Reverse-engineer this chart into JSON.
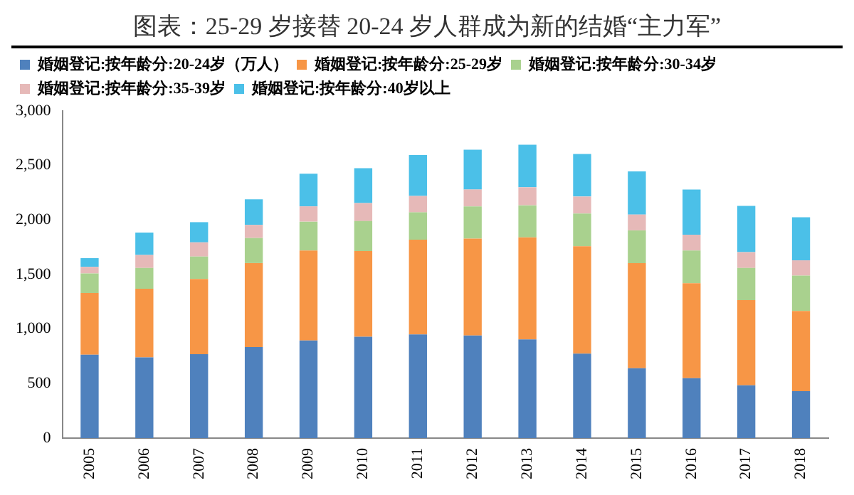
{
  "chart_data": {
    "type": "bar",
    "title": "图表：25-29 岁接替 20-24 岁人群成为新的结婚“主力军”",
    "stacked": true,
    "legend": "top",
    "grid": false,
    "categories": [
      "2005",
      "2006",
      "2007",
      "2008",
      "2009",
      "2010",
      "2011",
      "2012",
      "2013",
      "2014",
      "2015",
      "2016",
      "2017",
      "2018"
    ],
    "ylim": [
      0,
      3000
    ],
    "yticks": [
      {
        "value": 0,
        "label": "0"
      },
      {
        "value": 500,
        "label": "500"
      },
      {
        "value": 1000,
        "label": "1,000"
      },
      {
        "value": 1500,
        "label": "1,500"
      },
      {
        "value": 2000,
        "label": "2,000"
      },
      {
        "value": 2500,
        "label": "2,500"
      },
      {
        "value": 3000,
        "label": "3,000"
      }
    ],
    "series": [
      {
        "name": "婚姻登记:按年龄分:20-24岁（万人）",
        "color": "#4f81bd",
        "values": [
          765,
          740,
          770,
          835,
          895,
          930,
          950,
          940,
          905,
          775,
          640,
          550,
          485,
          430
        ]
      },
      {
        "name": "婚姻登记:按年龄分:25-29岁",
        "color": "#f79646",
        "values": [
          565,
          630,
          690,
          770,
          825,
          785,
          870,
          890,
          935,
          985,
          965,
          870,
          780,
          735
        ]
      },
      {
        "name": "婚姻登记:按年龄分:30-34岁",
        "color": "#a9d18e",
        "values": [
          180,
          190,
          205,
          230,
          265,
          275,
          250,
          295,
          295,
          300,
          300,
          300,
          295,
          325
        ]
      },
      {
        "name": "婚姻登记:按年龄分:35-39岁",
        "color": "#e6b9b8",
        "values": [
          60,
          120,
          130,
          120,
          140,
          165,
          150,
          155,
          165,
          155,
          145,
          145,
          145,
          140
        ]
      },
      {
        "name": "婚姻登记:按年龄分:40岁以上",
        "color": "#4bc0e8",
        "values": [
          80,
          205,
          185,
          235,
          300,
          320,
          375,
          365,
          390,
          390,
          395,
          415,
          425,
          395
        ]
      }
    ]
  }
}
